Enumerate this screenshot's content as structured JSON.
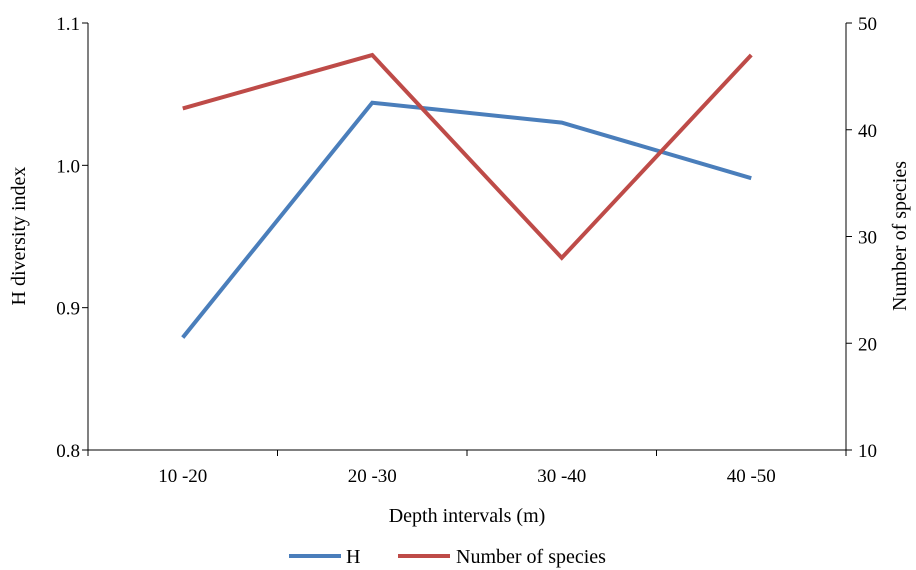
{
  "chart_data": {
    "type": "line",
    "categories": [
      "10 -20",
      "20 -30",
      "30 -40",
      "40 -50"
    ],
    "xlabel": "Depth intervals (m)",
    "ylabel_left": "H diversity index",
    "ylabel_right": "Number of species",
    "ylim_left": [
      0.8,
      1.1
    ],
    "yticks_left": [
      "0.8",
      "0.9",
      "1.0",
      "1.1"
    ],
    "ylim_right": [
      10,
      50
    ],
    "yticks_right": [
      "10",
      "20",
      "30",
      "40",
      "50"
    ],
    "grid": false,
    "legend_position": "bottom",
    "series": [
      {
        "name": "H",
        "axis": "left",
        "color": "#4a7ebb",
        "values": [
          0.879,
          1.044,
          1.03,
          0.991
        ]
      },
      {
        "name": "Number of species",
        "axis": "right",
        "color": "#be4b48",
        "values": [
          42,
          47,
          28,
          47
        ]
      }
    ]
  }
}
